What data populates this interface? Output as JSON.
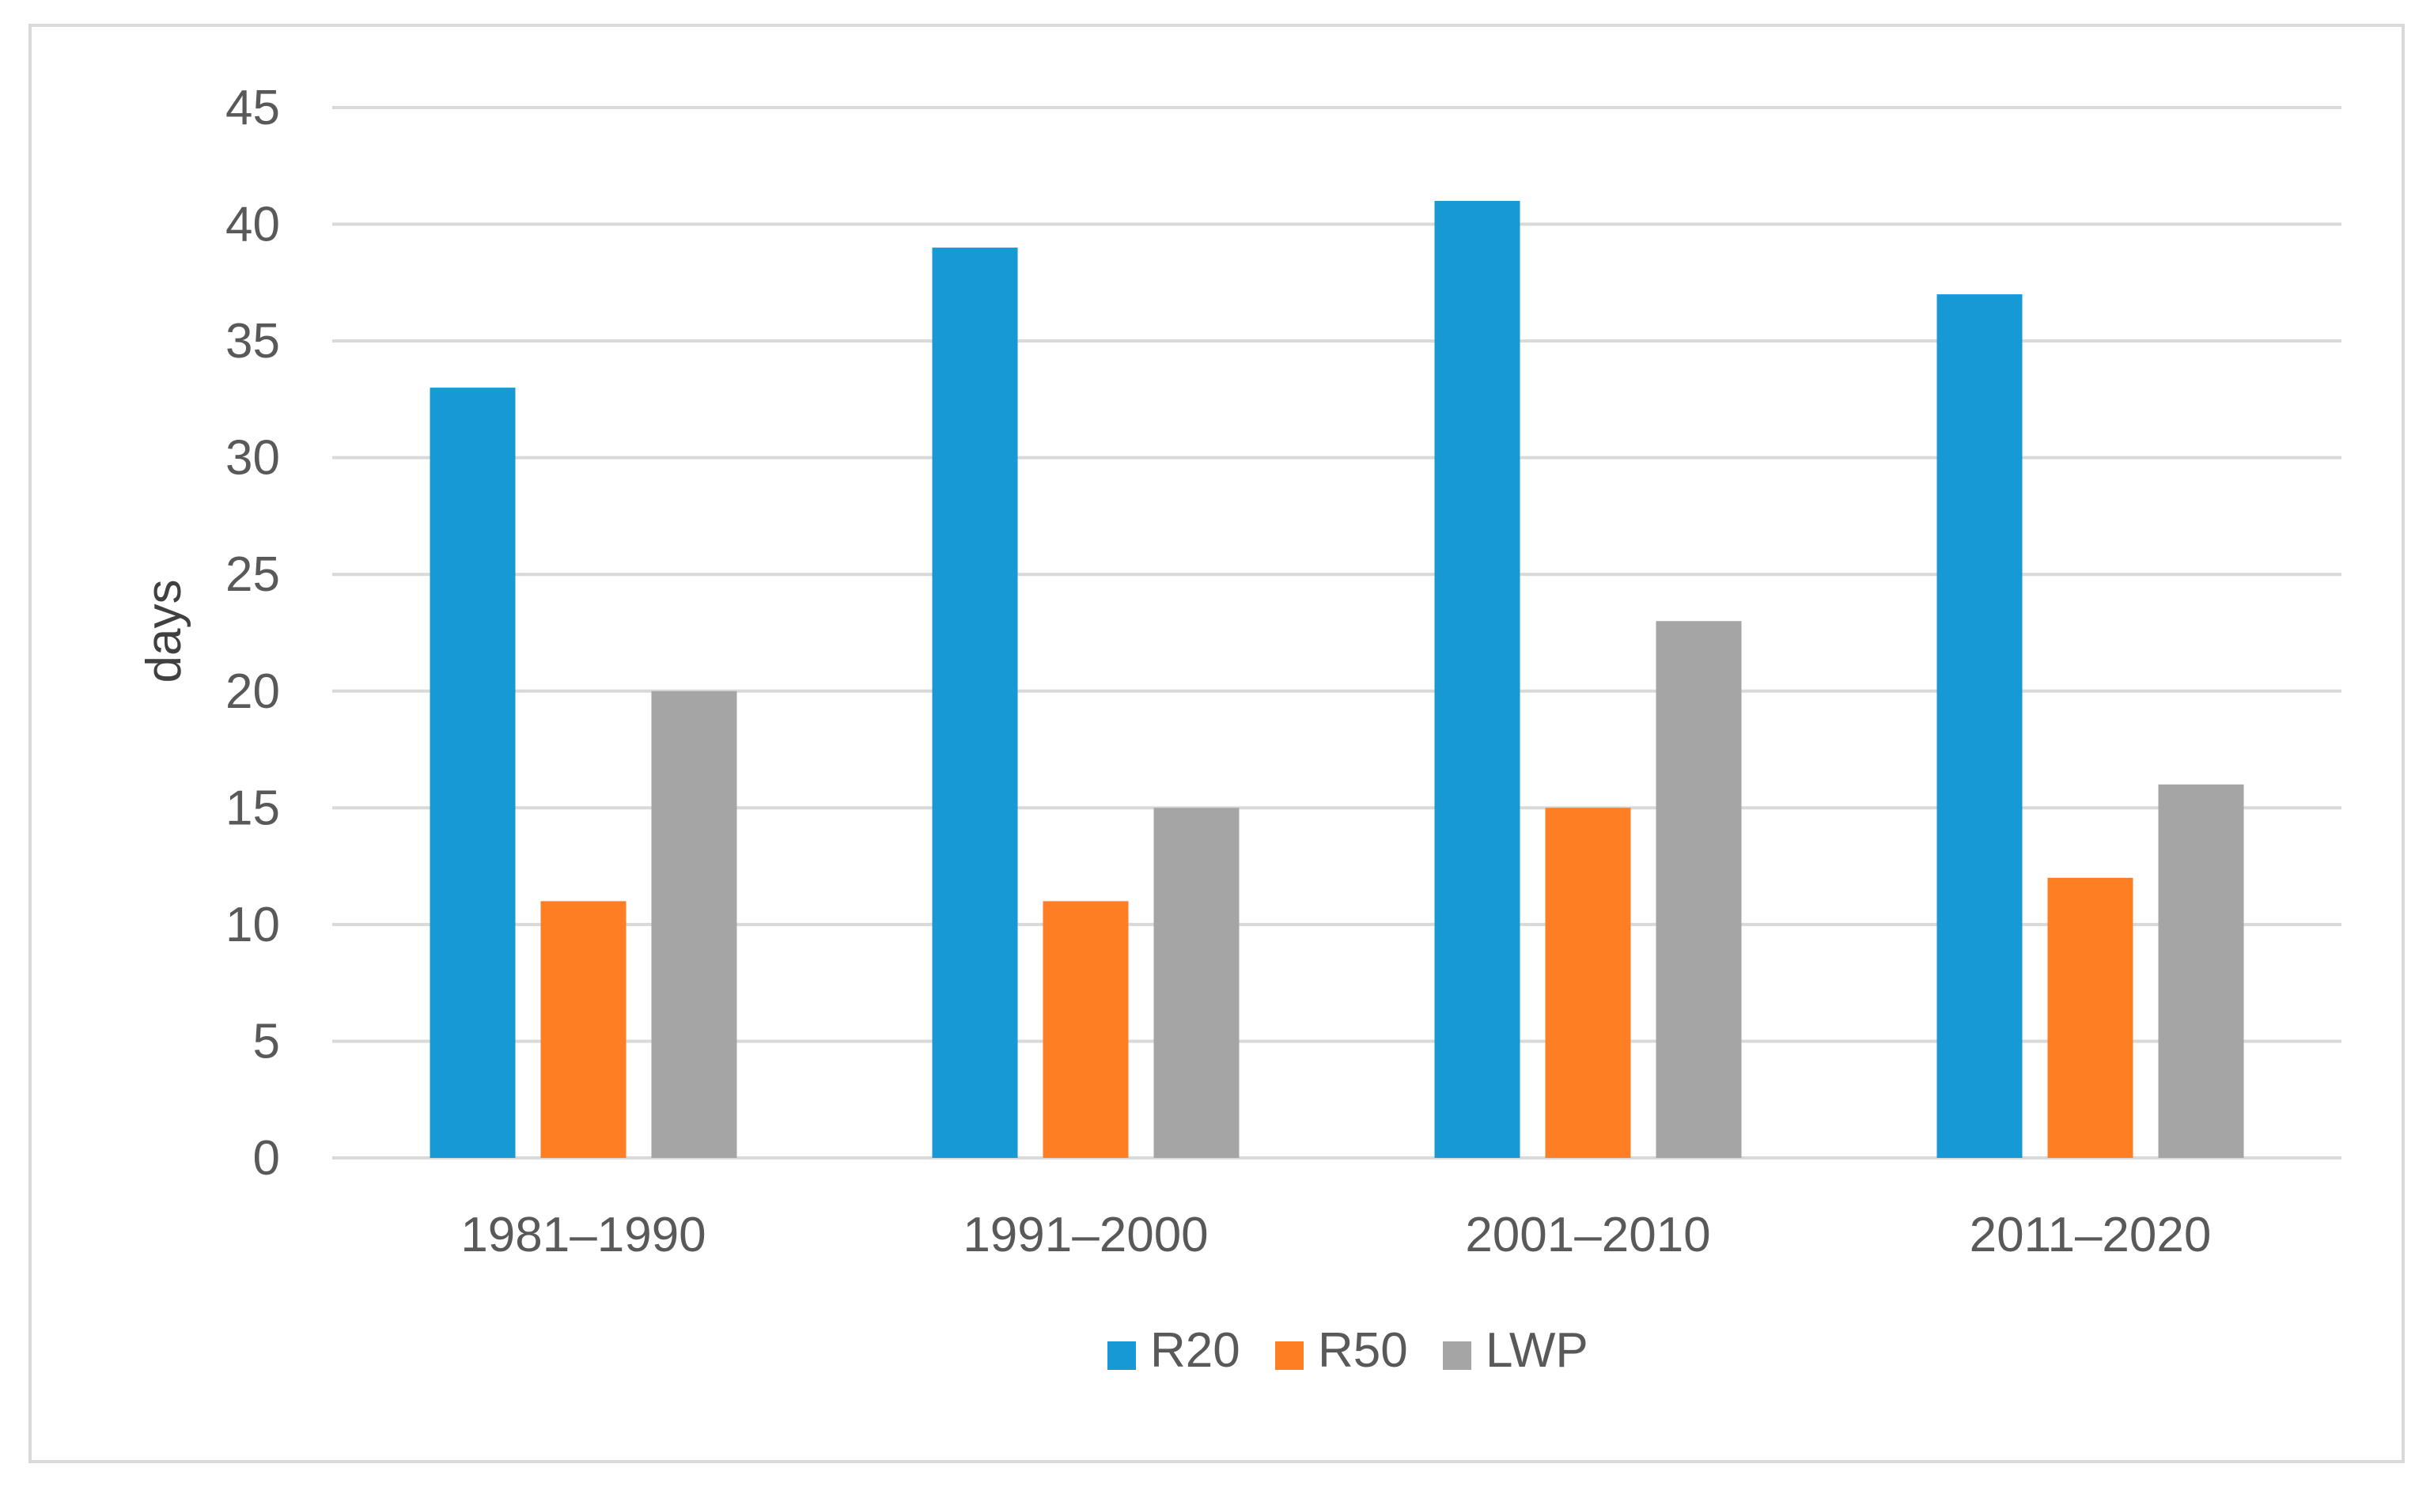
{
  "chart_data": {
    "type": "bar",
    "title": "",
    "xlabel": "",
    "ylabel": "days",
    "ylim": [
      0,
      45
    ],
    "yticks": [
      0,
      5,
      10,
      15,
      20,
      25,
      30,
      35,
      40,
      45
    ],
    "grid": true,
    "legend_position": "bottom",
    "categories": [
      "1981–1990",
      "1991–2000",
      "2001–2010",
      "2011–2020"
    ],
    "series": [
      {
        "name": "R20",
        "color": "#1799d6",
        "values": [
          33,
          39,
          41,
          37
        ]
      },
      {
        "name": "R50",
        "color": "#fd7e23",
        "values": [
          11,
          11,
          15,
          12
        ]
      },
      {
        "name": "LWP",
        "color": "#a5a5a5",
        "values": [
          20,
          15,
          23,
          16
        ]
      }
    ]
  }
}
